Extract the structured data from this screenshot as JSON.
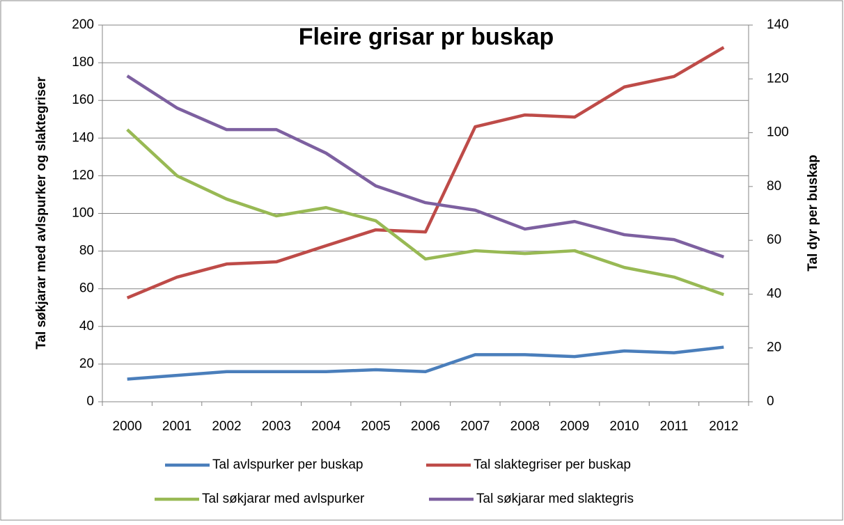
{
  "chart_data": {
    "type": "line",
    "title": "Fleire grisar pr buskap",
    "y_label": "Tal søkjarar med avlspurker og slaktegriser",
    "y2_label": "Tal dyr per buskap",
    "categories": [
      "2000",
      "2001",
      "2002",
      "2003",
      "2004",
      "2005",
      "2006",
      "2007",
      "2008",
      "2009",
      "2010",
      "2011",
      "2012"
    ],
    "series": [
      {
        "name": "Tal avlspurker per buskap",
        "color": "#4a7ebb",
        "axis": "y2",
        "values": [
          8.4,
          9.8,
          11.2,
          11.2,
          11.2,
          11.9,
          11.2,
          17.5,
          17.5,
          16.8,
          18.9,
          18.2,
          20.3
        ]
      },
      {
        "name": "Tal slaktegriser per buskap",
        "color": "#be4b48",
        "axis": "y2",
        "values": [
          38.6,
          46.3,
          51.2,
          52,
          58,
          63.9,
          63.1,
          102.2,
          106.6,
          105.8,
          117,
          120.9,
          131.7
        ]
      },
      {
        "name": "Tal søkjarar med avlspurker",
        "color": "#98b954",
        "values": [
          144.5,
          120,
          107.6,
          98.7,
          103.1,
          96.1,
          75.8,
          80.2,
          78.7,
          80.2,
          71.3,
          66.2,
          56.9
        ]
      },
      {
        "name": "Tal søkjarar med slaktegris",
        "color": "#7d60a0",
        "values": [
          173,
          156,
          144.5,
          144.5,
          132,
          114.6,
          105.7,
          101.7,
          91.7,
          95.7,
          88.7,
          86.1,
          76.9
        ]
      }
    ],
    "ylim": [
      0,
      200
    ],
    "yticks": [
      0,
      20,
      40,
      60,
      80,
      100,
      120,
      140,
      160,
      180,
      200
    ],
    "y2lim": [
      0,
      140
    ],
    "y2ticks": [
      0,
      20,
      40,
      60,
      80,
      100,
      120,
      140
    ],
    "grid": true
  }
}
